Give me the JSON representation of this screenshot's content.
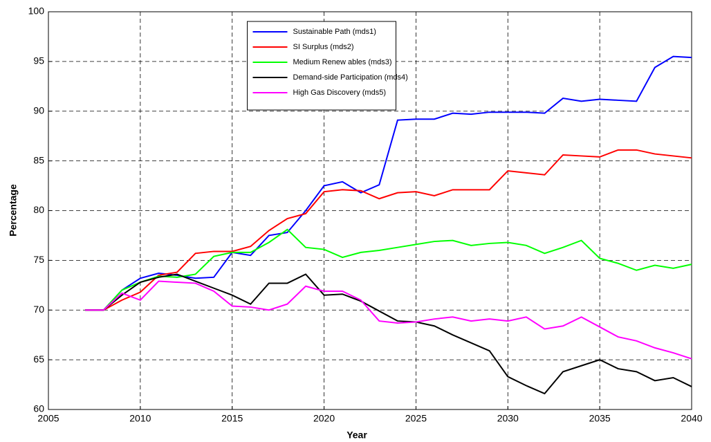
{
  "chart_data": {
    "type": "line",
    "x_label": "Year",
    "y_label": "Percentage",
    "x": [
      2007,
      2008,
      2009,
      2010,
      2011,
      2012,
      2013,
      2014,
      2015,
      2016,
      2017,
      2018,
      2019,
      2020,
      2021,
      2022,
      2023,
      2024,
      2025,
      2026,
      2027,
      2028,
      2029,
      2030,
      2031,
      2032,
      2033,
      2034,
      2035,
      2036,
      2037,
      2038,
      2039,
      2040
    ],
    "series": [
      {
        "name": "Sustainable Path (mds1)",
        "color": "#0000ff",
        "values": [
          70,
          70,
          72,
          73.2,
          73.7,
          73.5,
          73.2,
          73.3,
          75.8,
          75.5,
          77.5,
          77.8,
          80,
          82.5,
          82.9,
          81.8,
          82.6,
          89.1,
          89.2,
          89.2,
          89.8,
          89.7,
          89.9,
          89.9,
          89.9,
          89.8,
          91.3,
          91,
          91.2,
          91.1,
          91,
          94.4,
          95.5,
          95.4
        ]
      },
      {
        "name": "SI Surplus (mds2)",
        "color": "#ff0000",
        "values": [
          70,
          70,
          71,
          71.8,
          73.5,
          73.8,
          75.7,
          75.9,
          75.9,
          76.4,
          78,
          79.2,
          79.7,
          81.9,
          82.1,
          82,
          81.2,
          81.8,
          81.9,
          81.5,
          82.1,
          82.1,
          82.1,
          84,
          83.8,
          83.6,
          85.6,
          85.5,
          85.4,
          86.1,
          86.1,
          85.7,
          85.5,
          85.3
        ]
      },
      {
        "name": "Medium Renew ables (mds3)",
        "color": "#00ff00",
        "values": [
          70,
          70,
          72,
          72.8,
          73.4,
          73.3,
          73.6,
          75.4,
          75.8,
          75.8,
          76.8,
          78.1,
          76.3,
          76.1,
          75.3,
          75.8,
          76,
          76.3,
          76.6,
          76.9,
          77,
          76.5,
          76.7,
          76.8,
          76.5,
          75.7,
          76.3,
          77,
          75.2,
          74.7,
          74,
          74.5,
          74.2,
          74.6
        ]
      },
      {
        "name": "Demand-side Participation (mds4)",
        "color": "#000000",
        "values": [
          70,
          70,
          71.5,
          72.8,
          73.3,
          73.6,
          72.9,
          72.2,
          71.5,
          70.6,
          72.7,
          72.7,
          73.6,
          71.5,
          71.6,
          70.9,
          69.9,
          68.9,
          68.8,
          68.4,
          67.5,
          66.7,
          65.9,
          63.3,
          62.4,
          61.6,
          63.8,
          64.4,
          65,
          64.1,
          63.8,
          62.9,
          63.2,
          62.3
        ]
      },
      {
        "name": "High Gas Discovery (mds5)",
        "color": "#ff00ff",
        "values": [
          70,
          70,
          71.7,
          71,
          72.9,
          72.8,
          72.7,
          71.9,
          70.4,
          70.3,
          70,
          70.6,
          72.4,
          71.9,
          71.9,
          71,
          68.9,
          68.7,
          68.8,
          69.1,
          69.3,
          68.9,
          69.1,
          68.9,
          69.3,
          68.1,
          68.4,
          69.3,
          68.3,
          67.3,
          66.9,
          66.2,
          65.7,
          65.1
        ]
      }
    ],
    "xlim": [
      2005,
      2040
    ],
    "xticks": [
      2005,
      2010,
      2015,
      2020,
      2025,
      2030,
      2035,
      2040
    ],
    "ylim": [
      60,
      100
    ],
    "yticks": [
      60,
      65,
      70,
      75,
      80,
      85,
      90,
      95,
      100
    ],
    "grid": true,
    "legend": "upper center"
  }
}
